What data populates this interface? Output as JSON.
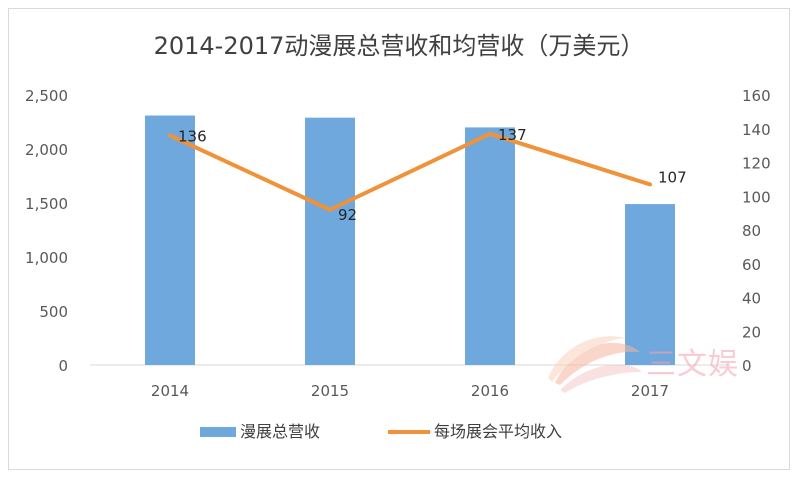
{
  "chart_data": {
    "type": "bar",
    "title": "2014-2017动漫展总营收和均营收（万美元）",
    "categories": [
      "2014",
      "2015",
      "2016",
      "2017"
    ],
    "series": [
      {
        "name": "漫展总营收",
        "type": "bar",
        "axis": "left",
        "values": [
          2310,
          2290,
          2200,
          1490
        ],
        "color": "#6fa8dc"
      },
      {
        "name": "每场展会平均收入",
        "type": "line",
        "axis": "right",
        "values": [
          136,
          92,
          137,
          107
        ],
        "data_labels": [
          "136",
          "92",
          "137",
          "107"
        ],
        "color": "#f0923a"
      }
    ],
    "y_left": {
      "min": 0,
      "max": 2500,
      "step": 500,
      "tick_labels": [
        "0",
        "500",
        "1,000",
        "1,500",
        "2,000",
        "2,500"
      ]
    },
    "y_right": {
      "min": 0,
      "max": 160,
      "step": 20,
      "tick_labels": [
        "0",
        "20",
        "40",
        "60",
        "80",
        "100",
        "120",
        "140",
        "160"
      ]
    },
    "grid": false,
    "legend_position": "bottom",
    "watermark_text": "三文娱"
  }
}
